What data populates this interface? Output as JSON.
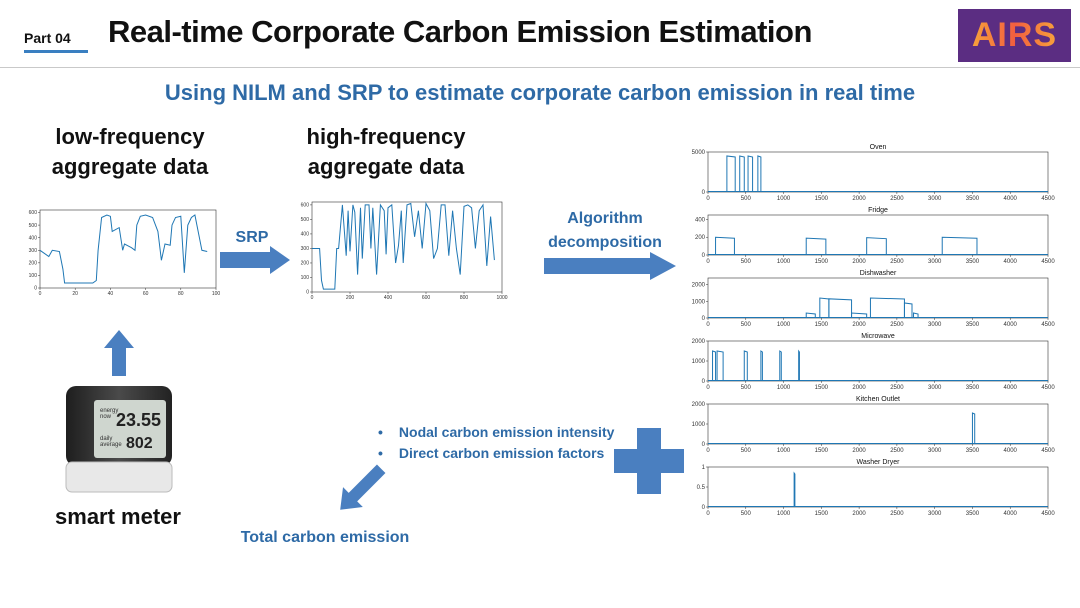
{
  "header": {
    "part_label": "Part 04",
    "title": "Real-time Corporate Carbon Emission Estimation",
    "logo_text": "AIRS"
  },
  "subtitle": "Using NILM and SRP to estimate corporate carbon emission in real time",
  "low_freq": {
    "line1": "low-frequency",
    "line2": "aggregate data"
  },
  "high_freq": {
    "line1": "high-frequency",
    "line2": "aggregate data"
  },
  "srp_label": "SRP",
  "algorithm": {
    "line1": "Algorithm",
    "line2": "decomposition"
  },
  "smart_meter_label": "smart meter",
  "meter_display": {
    "row1": "23.55",
    "row2": "802"
  },
  "bullets": [
    "Nodal carbon emission intensity",
    "Direct carbon emission factors"
  ],
  "total_label": "Total carbon emission",
  "colors": {
    "arrow": "#4a7fc0",
    "accent_text": "#2e6aa6",
    "plot_line": "#1f77b4",
    "logo_bg": "#5b2d82"
  },
  "chart_data": [
    {
      "type": "line",
      "name": "low-frequency aggregate",
      "x_ticks": [
        "0",
        "20",
        "40",
        "60",
        "80",
        "100"
      ],
      "y_ticks": [
        "0",
        "100",
        "200",
        "300",
        "400",
        "500",
        "600"
      ],
      "xlim": [
        0,
        100
      ],
      "ylim": [
        0,
        620
      ],
      "x": [
        0,
        5,
        7,
        11,
        13,
        14,
        28,
        30,
        32,
        33,
        35,
        38,
        40,
        41,
        45,
        47,
        48,
        52,
        54,
        55,
        57,
        60,
        64,
        67,
        69,
        71,
        74,
        75,
        77,
        80,
        82,
        84,
        86,
        88,
        92,
        95
      ],
      "y": [
        300,
        250,
        300,
        290,
        150,
        40,
        40,
        40,
        60,
        300,
        560,
        580,
        570,
        450,
        480,
        300,
        350,
        320,
        300,
        500,
        570,
        580,
        560,
        450,
        220,
        350,
        340,
        500,
        560,
        570,
        120,
        500,
        560,
        580,
        300,
        290
      ]
    },
    {
      "type": "line",
      "name": "high-frequency aggregate",
      "x_ticks": [
        "0",
        "200",
        "400",
        "600",
        "800",
        "1000"
      ],
      "y_ticks": [
        "0",
        "100",
        "200",
        "300",
        "400",
        "500",
        "600"
      ],
      "xlim": [
        0,
        1000
      ],
      "ylim": [
        0,
        620
      ],
      "x": [
        0,
        40,
        50,
        60,
        70,
        120,
        130,
        140,
        160,
        180,
        190,
        200,
        215,
        225,
        240,
        255,
        265,
        280,
        300,
        310,
        320,
        340,
        360,
        380,
        390,
        400,
        420,
        440,
        455,
        470,
        480,
        500,
        520,
        540,
        560,
        580,
        600,
        620,
        640,
        660,
        680,
        700,
        720,
        740,
        760,
        780,
        800,
        820,
        840,
        860,
        880,
        900,
        920,
        940,
        960
      ],
      "y": [
        300,
        300,
        80,
        20,
        20,
        20,
        300,
        300,
        600,
        250,
        560,
        280,
        600,
        550,
        120,
        580,
        230,
        600,
        600,
        300,
        580,
        120,
        600,
        560,
        260,
        580,
        600,
        200,
        320,
        560,
        200,
        600,
        610,
        380,
        560,
        300,
        610,
        560,
        230,
        300,
        600,
        600,
        250,
        560,
        300,
        120,
        590,
        600,
        580,
        300,
        560,
        600,
        180,
        520,
        220
      ]
    },
    {
      "type": "line",
      "title": "Oven",
      "x_ticks": [
        "0",
        "500",
        "1000",
        "1500",
        "2000",
        "2500",
        "3000",
        "3500",
        "4000",
        "4500"
      ],
      "y_ticks": [
        "0",
        "5000"
      ],
      "xlim": [
        0,
        4500
      ],
      "ylim": [
        0,
        5000
      ],
      "spikes": [
        [
          250,
          360,
          4500
        ],
        [
          420,
          480,
          4500
        ],
        [
          530,
          590,
          4500
        ],
        [
          660,
          700,
          4500
        ]
      ]
    },
    {
      "type": "line",
      "title": "Fridge",
      "x_ticks": [
        "0",
        "500",
        "1000",
        "1500",
        "2000",
        "2500",
        "3000",
        "3500",
        "4000",
        "4500"
      ],
      "y_ticks": [
        "0",
        "200",
        "400"
      ],
      "xlim": [
        0,
        4500
      ],
      "ylim": [
        0,
        450
      ],
      "spikes": [
        [
          100,
          350,
          200
        ],
        [
          1300,
          1560,
          190
        ],
        [
          2100,
          2360,
          195
        ],
        [
          3100,
          3560,
          200
        ]
      ]
    },
    {
      "type": "line",
      "title": "Dishwasher",
      "x_ticks": [
        "0",
        "500",
        "1000",
        "1500",
        "2000",
        "2500",
        "3000",
        "3500",
        "4000",
        "4500"
      ],
      "y_ticks": [
        "0",
        "1000",
        "2000"
      ],
      "xlim": [
        0,
        4500
      ],
      "ylim": [
        0,
        2400
      ],
      "spikes": [
        [
          1300,
          1420,
          300
        ],
        [
          1480,
          1600,
          1200
        ],
        [
          1600,
          1900,
          1150
        ],
        [
          1900,
          2100,
          300
        ],
        [
          2150,
          2600,
          1200
        ],
        [
          2600,
          2700,
          900
        ],
        [
          2720,
          2780,
          300
        ]
      ]
    },
    {
      "type": "line",
      "title": "Microwave",
      "x_ticks": [
        "0",
        "500",
        "1000",
        "1500",
        "2000",
        "2500",
        "3000",
        "3500",
        "4000",
        "4500"
      ],
      "y_ticks": [
        "0",
        "1000",
        "2000"
      ],
      "xlim": [
        0,
        4500
      ],
      "ylim": [
        0,
        2000
      ],
      "spikes": [
        [
          60,
          100,
          1500
        ],
        [
          120,
          200,
          1500
        ],
        [
          480,
          520,
          1500
        ],
        [
          700,
          720,
          1500
        ],
        [
          950,
          970,
          1500
        ],
        [
          1200,
          1210,
          1500
        ]
      ]
    },
    {
      "type": "line",
      "title": "Kitchen Outlet",
      "x_ticks": [
        "0",
        "500",
        "1000",
        "1500",
        "2000",
        "2500",
        "3000",
        "3500",
        "4000",
        "4500"
      ],
      "y_ticks": [
        "0",
        "1000",
        "2000"
      ],
      "xlim": [
        0,
        4500
      ],
      "ylim": [
        0,
        2000
      ],
      "spikes": [
        [
          3500,
          3530,
          1550
        ]
      ]
    },
    {
      "type": "line",
      "title": "Washer Dryer",
      "x_ticks": [
        "0",
        "500",
        "1000",
        "1500",
        "2000",
        "2500",
        "3000",
        "3500",
        "4000",
        "4500"
      ],
      "y_ticks": [
        "0",
        "0.5",
        "1"
      ],
      "xlim": [
        0,
        4500
      ],
      "ylim": [
        0,
        1
      ],
      "spikes": [
        [
          1140,
          1150,
          0.85
        ]
      ]
    }
  ]
}
